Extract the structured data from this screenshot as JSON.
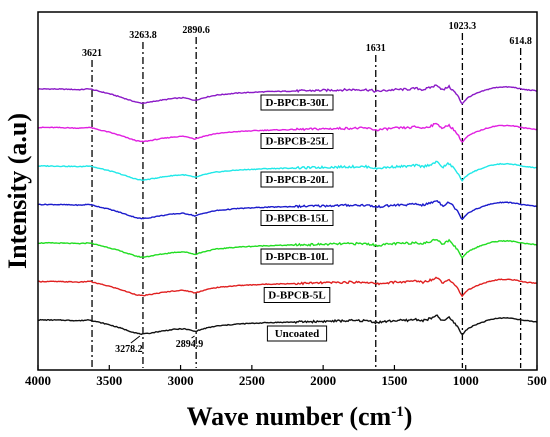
{
  "chart_data": {
    "type": "line",
    "xlabel": "Wave number (cm",
    "xlabel_sup": "-1",
    "xlabel_end": ")",
    "ylabel": "Intensity (a.u)",
    "xlim": [
      4000,
      500
    ],
    "x_reversed": true,
    "x_ticks": [
      4000,
      3500,
      3000,
      2500,
      2000,
      1500,
      1000,
      500
    ],
    "y_ticks_shown": false,
    "grid": false,
    "legend": "none",
    "annotations_top": [
      {
        "x": 3621,
        "text": "3621"
      },
      {
        "x": 3263.8,
        "text": "3263.8"
      },
      {
        "x": 2890.6,
        "text": "2890.6"
      },
      {
        "x": 1631,
        "text": "1631"
      },
      {
        "x": 1023.3,
        "text": "1023.3"
      },
      {
        "x": 614.8,
        "text": "614.8"
      }
    ],
    "annotations_bottom": [
      {
        "x": 3278.2,
        "text": "3278.2"
      },
      {
        "x": 2894.9,
        "text": "2894.9"
      }
    ],
    "series": [
      {
        "name": "D-BPCB-30L",
        "color": "#8B1AC7",
        "offset": 6
      },
      {
        "name": "D-BPCB-25L",
        "color": "#E020E0",
        "offset": 5
      },
      {
        "name": "D-BPCB-20L",
        "color": "#20E8E8",
        "offset": 4
      },
      {
        "name": "D-BPCB-15L",
        "color": "#1C1CCC",
        "offset": 3
      },
      {
        "name": "D-BPCB-10L",
        "color": "#22DD22",
        "offset": 2
      },
      {
        "name": "D-BPCB-5L",
        "color": "#E02020",
        "offset": 1
      },
      {
        "name": "Uncoated",
        "color": "#111111",
        "offset": 0
      }
    ],
    "shape": {
      "x": [
        4000,
        3900,
        3800,
        3700,
        3640,
        3621,
        3580,
        3500,
        3420,
        3350,
        3300,
        3270,
        3230,
        3150,
        3050,
        2980,
        2930,
        2900,
        2870,
        2820,
        2750,
        2600,
        2400,
        2200,
        2000,
        1800,
        1700,
        1660,
        1631,
        1600,
        1500,
        1400,
        1350,
        1300,
        1250,
        1200,
        1160,
        1120,
        1080,
        1050,
        1035,
        1023,
        1010,
        980,
        930,
        880,
        820,
        760,
        700,
        650,
        615,
        580,
        530,
        500
      ],
      "y": [
        0.0,
        0.0,
        -0.2,
        -0.5,
        0.2,
        -0.4,
        -1.5,
        -3.5,
        -6.0,
        -8.5,
        -10.0,
        -10.5,
        -10.0,
        -8.5,
        -7.0,
        -6.5,
        -7.5,
        -8.5,
        -7.5,
        -6.0,
        -4.5,
        -3.0,
        -2.0,
        -1.5,
        -1.0,
        -0.5,
        -0.5,
        -1.0,
        -2.0,
        -1.5,
        -0.5,
        -0.2,
        0.5,
        -0.5,
        1.0,
        3.0,
        -1.0,
        2.0,
        -2.0,
        -6.0,
        -9.5,
        -11.0,
        -9.0,
        -6.0,
        -3.5,
        -1.5,
        0.5,
        1.5,
        1.5,
        1.0,
        0.0,
        -0.5,
        -1.0,
        -1.5
      ]
    }
  }
}
